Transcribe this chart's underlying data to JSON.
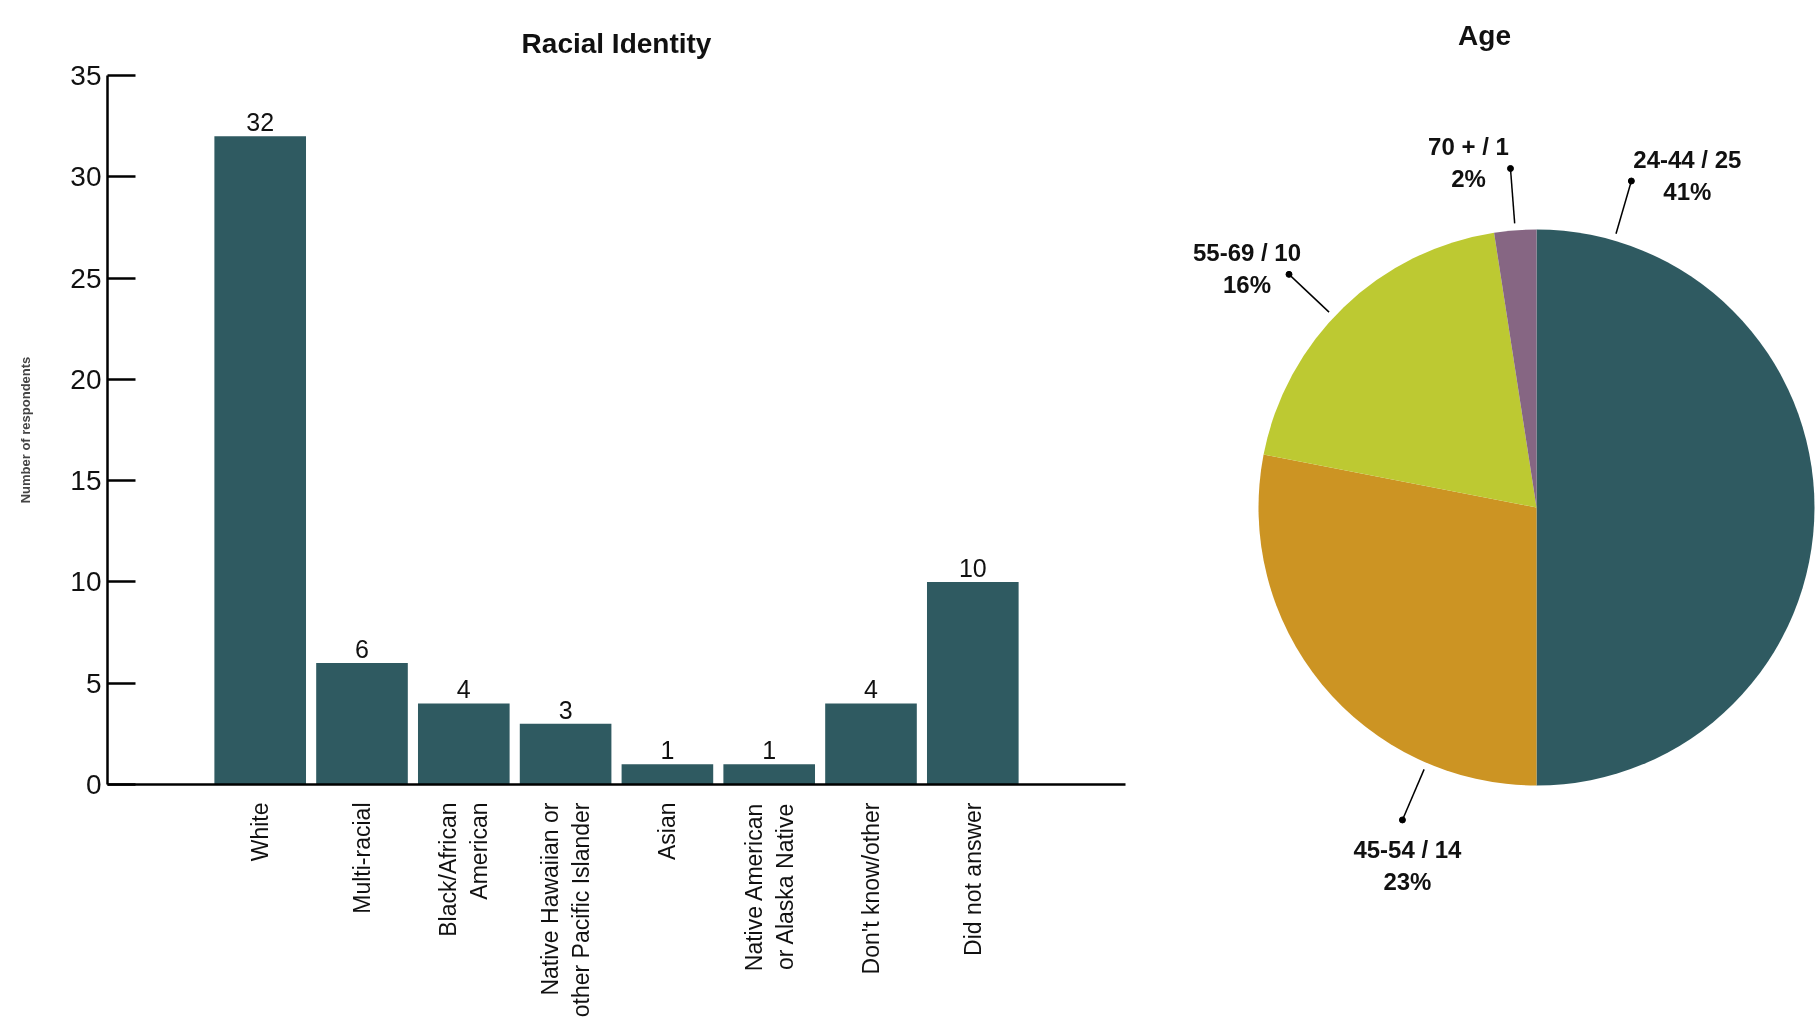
{
  "chart_data": [
    {
      "type": "bar",
      "title": "Racial Identity",
      "ylabel": "Number of respondents",
      "categories": [
        "White",
        "Multi-racial",
        "Black/African\nAmerican",
        "Native Hawaiian or\nother Pacific Islander",
        "Asian",
        "Native American\nor Alaska Native",
        "Don't know/other",
        "Did not answer"
      ],
      "values": [
        32,
        6,
        4,
        3,
        1,
        1,
        4,
        10
      ],
      "color": "#2f5a61",
      "ylim": [
        0,
        35
      ],
      "yticks": [
        0,
        5,
        10,
        15,
        20,
        25,
        30,
        35
      ],
      "data_labels": true,
      "grid": false
    },
    {
      "type": "pie",
      "title": "Age",
      "categories": [
        "24-44 / 25",
        "45-54 / 14",
        "55-69 / 10",
        "70 + / 1"
      ],
      "values": [
        41,
        23,
        16,
        2
      ],
      "value_labels": [
        "41%",
        "23%",
        "16%",
        "2%"
      ],
      "colors": [
        "#2f5a61",
        "#cc9423",
        "#bdc932",
        "#866683"
      ]
    }
  ]
}
